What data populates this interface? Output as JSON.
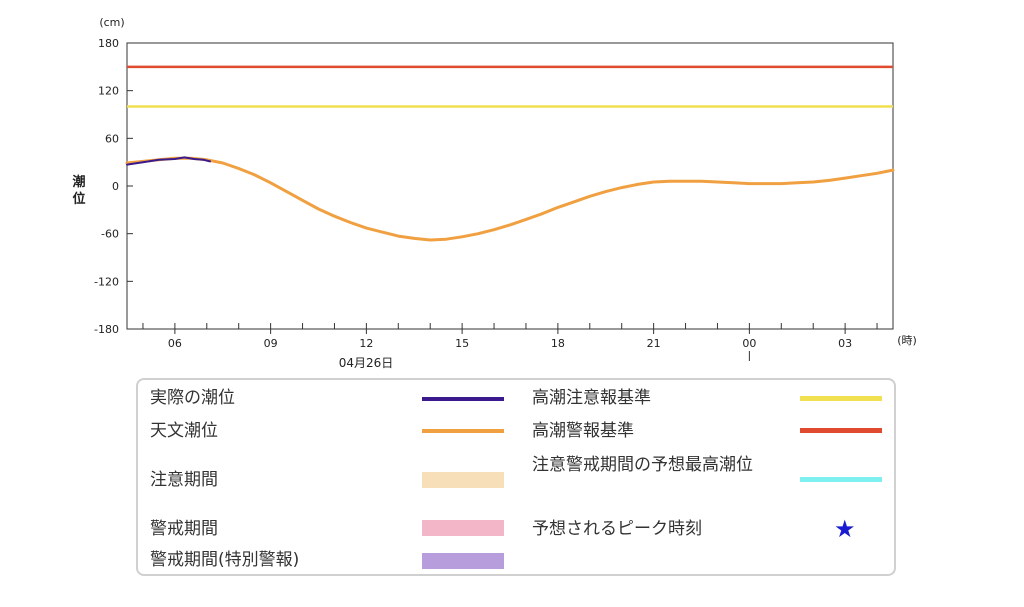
{
  "chart_data": {
    "type": "line",
    "y_unit": "(cm)",
    "x_unit": "(時)",
    "ylabel": "潮位",
    "ylim": [
      -180,
      180
    ],
    "yticks": [
      180,
      120,
      60,
      0,
      -60,
      -120,
      -180
    ],
    "ytick_labels": [
      "180",
      "120",
      "60",
      "0",
      "-60",
      "-120",
      "-180"
    ],
    "xlim_hours": [
      4.5,
      28.5
    ],
    "xticks_hours": [
      6,
      9,
      12,
      15,
      18,
      21,
      24,
      27
    ],
    "xtick_labels": [
      "06",
      "09",
      "12",
      "15",
      "18",
      "21",
      "00",
      "03"
    ],
    "date_label": "04月26日",
    "grid": false,
    "thresholds": [
      {
        "name": "高潮警報基準",
        "value": 150,
        "color": "#e04a2f"
      },
      {
        "name": "高潮注意報基準",
        "value": 100,
        "color": "#f1e050"
      }
    ],
    "series": [
      {
        "name": "天文潮位",
        "color": "#f0a040",
        "points": [
          [
            4.5,
            29
          ],
          [
            5.0,
            31
          ],
          [
            5.5,
            33
          ],
          [
            6.0,
            35
          ],
          [
            6.5,
            35
          ],
          [
            7.0,
            33
          ],
          [
            7.5,
            29
          ],
          [
            8.0,
            22
          ],
          [
            8.5,
            14
          ],
          [
            9.0,
            4
          ],
          [
            9.5,
            -7
          ],
          [
            10.0,
            -18
          ],
          [
            10.5,
            -29
          ],
          [
            11.0,
            -38
          ],
          [
            11.5,
            -46
          ],
          [
            12.0,
            -53
          ],
          [
            12.5,
            -58
          ],
          [
            13.0,
            -63
          ],
          [
            13.5,
            -66
          ],
          [
            14.0,
            -68
          ],
          [
            14.5,
            -67
          ],
          [
            15.0,
            -64
          ],
          [
            15.5,
            -60
          ],
          [
            16.0,
            -55
          ],
          [
            16.5,
            -49
          ],
          [
            17.0,
            -42
          ],
          [
            17.5,
            -35
          ],
          [
            18.0,
            -27
          ],
          [
            18.5,
            -20
          ],
          [
            19.0,
            -13
          ],
          [
            19.5,
            -7
          ],
          [
            20.0,
            -2
          ],
          [
            20.5,
            2
          ],
          [
            21.0,
            5
          ],
          [
            21.5,
            6
          ],
          [
            22.0,
            6
          ],
          [
            22.5,
            6
          ],
          [
            23.0,
            5
          ],
          [
            23.5,
            4
          ],
          [
            24.0,
            3
          ],
          [
            24.5,
            3
          ],
          [
            25.0,
            3
          ],
          [
            25.5,
            4
          ],
          [
            26.0,
            5
          ],
          [
            26.5,
            7
          ],
          [
            27.0,
            10
          ],
          [
            27.5,
            13
          ],
          [
            28.0,
            16
          ],
          [
            28.5,
            20
          ]
        ]
      },
      {
        "name": "実際の潮位",
        "color": "#3a1a8c",
        "points": [
          [
            4.5,
            27
          ],
          [
            5.0,
            30
          ],
          [
            5.5,
            33
          ],
          [
            6.0,
            34
          ],
          [
            6.3,
            36
          ],
          [
            6.6,
            34
          ],
          [
            6.9,
            33
          ],
          [
            7.1,
            31
          ]
        ]
      }
    ]
  },
  "legend": {
    "items": [
      {
        "label": "実際の潮位",
        "kind": "line",
        "color": "#3a1a8c"
      },
      {
        "label": "天文潮位",
        "kind": "line",
        "color": "#f0a040"
      },
      {
        "label": "注意期間",
        "kind": "band",
        "color": "#f7dfba"
      },
      {
        "label": "警戒期間",
        "kind": "band",
        "color": "#f3b6c8"
      },
      {
        "label": "警戒期間(特別警報)",
        "kind": "band",
        "color": "#b79ddc"
      },
      {
        "label": "高潮注意報基準",
        "kind": "line",
        "color": "#f1e050"
      },
      {
        "label": "高潮警報基準",
        "kind": "line",
        "color": "#e04a2f"
      },
      {
        "label": "注意警戒期間の予想最高潮位",
        "kind": "line",
        "color": "#7ff0f0"
      },
      {
        "label": "予想されるピーク時刻",
        "kind": "star",
        "color": "#1a1ad0",
        "symbol": "★"
      }
    ]
  }
}
